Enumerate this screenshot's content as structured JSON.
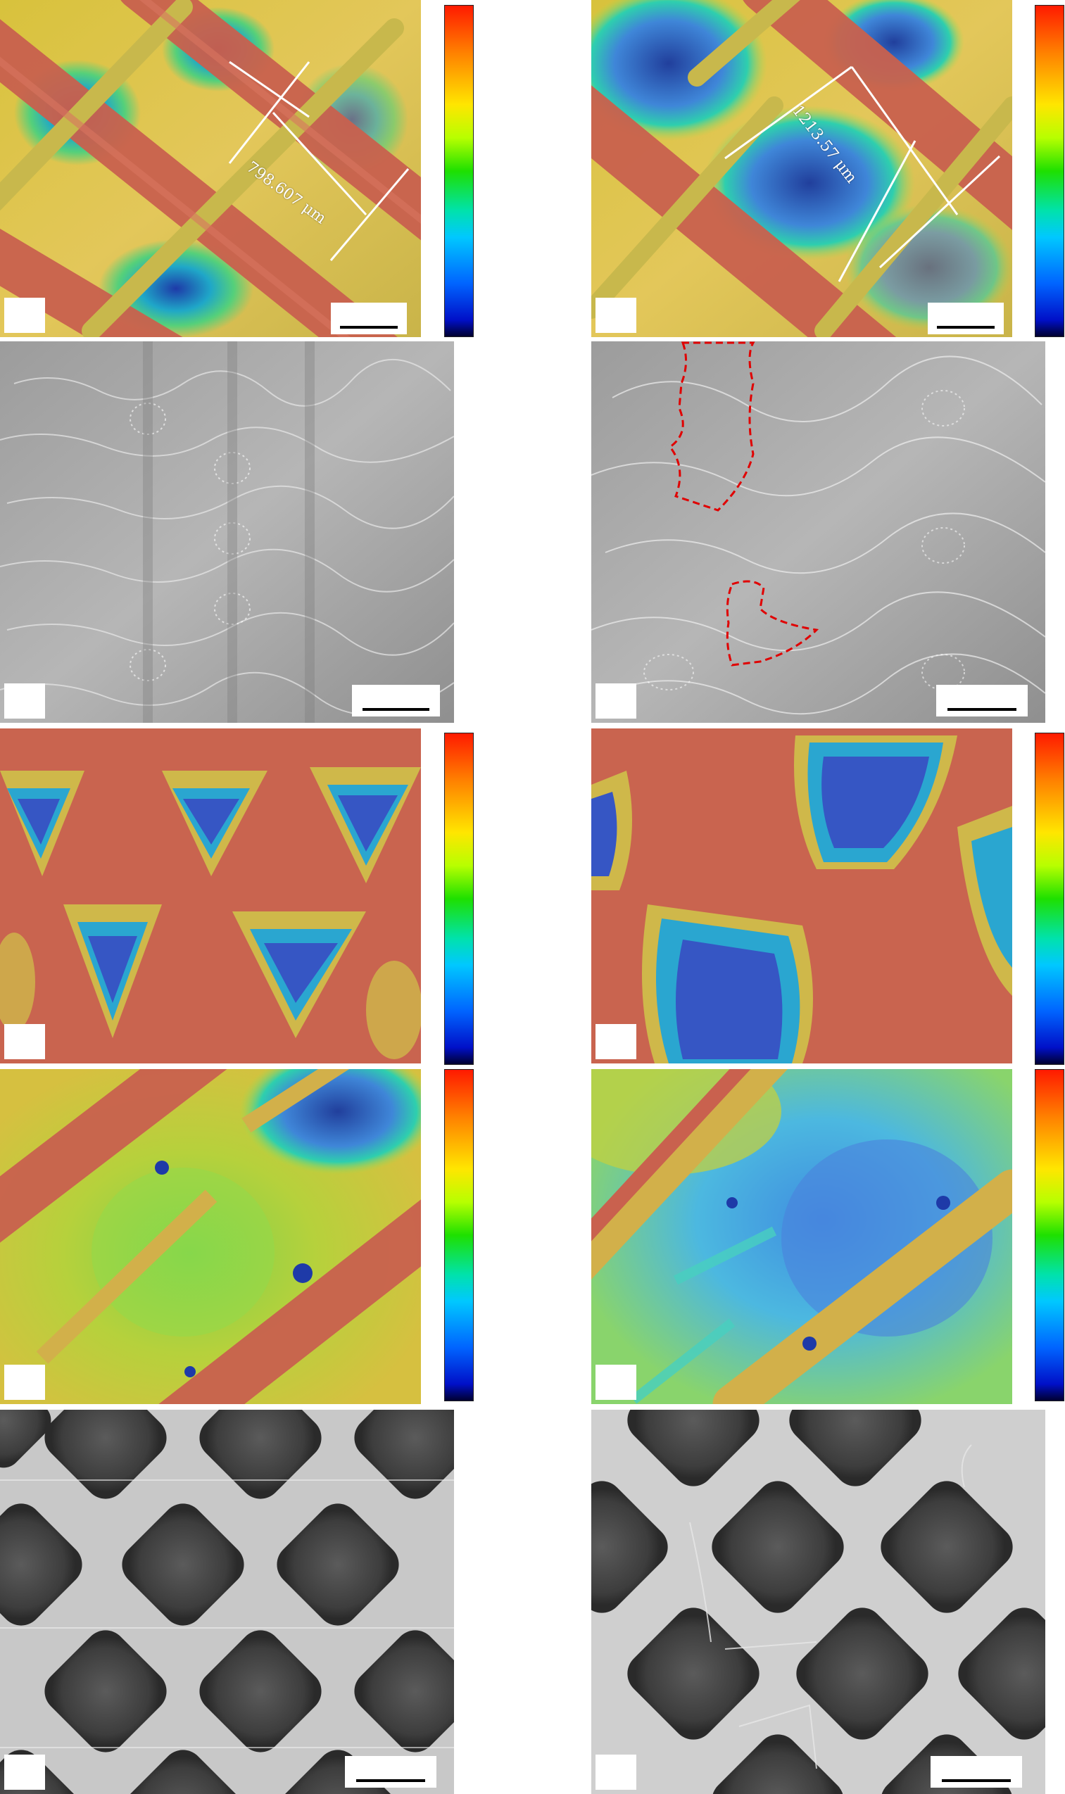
{
  "figure": {
    "measurements": [
      {
        "text": "798.607 μm"
      },
      {
        "text": "1213.57 μm"
      }
    ],
    "colorbar_colors": [
      "#ff1a00",
      "#ff7f00",
      "#ffe600",
      "#1ee000",
      "#00c8ff",
      "#0064ff",
      "#000030"
    ],
    "annotation_color": "#e00000"
  }
}
